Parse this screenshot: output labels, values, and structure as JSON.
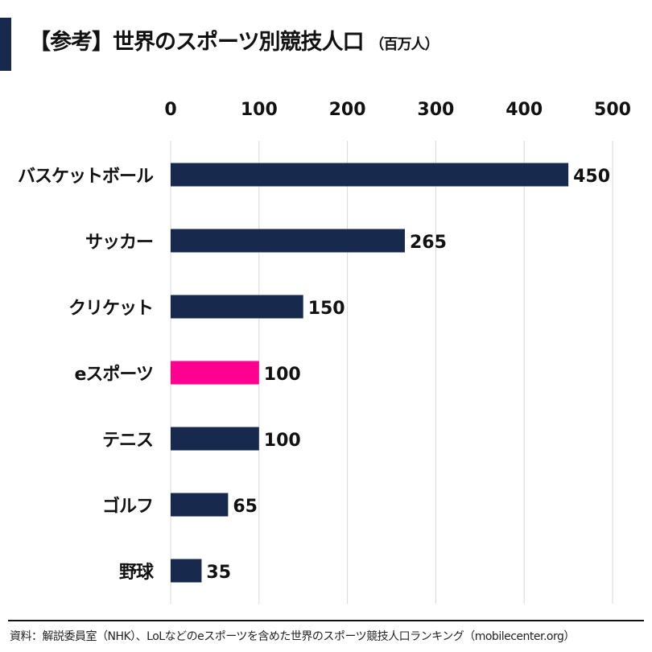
{
  "header": {
    "title": "【参考】世界のスポーツ別競技人口",
    "unit": "（百万人）"
  },
  "footer": {
    "source": "資料：解説委員室（NHK）、LoLなどのeスポーツを含めた世界のスポーツ競技人口ランキング（mobilecenter.org）"
  },
  "colors": {
    "default_bar": "#172a4e",
    "highlight_bar": "#ff0090",
    "grid": "#d9d9d9"
  },
  "chart_data": {
    "type": "bar",
    "orientation": "horizontal",
    "categories": [
      "バスケットボール",
      "サッカー",
      "クリケット",
      "eスポーツ",
      "テニス",
      "ゴルフ",
      "野球"
    ],
    "values": [
      450,
      265,
      150,
      100,
      100,
      65,
      35
    ],
    "highlight": "eスポーツ",
    "xlim": [
      0,
      500
    ],
    "xticks": [
      0,
      100,
      200,
      300,
      400,
      500
    ],
    "x_axis_position": "top",
    "grid": true,
    "data_labels": true
  }
}
